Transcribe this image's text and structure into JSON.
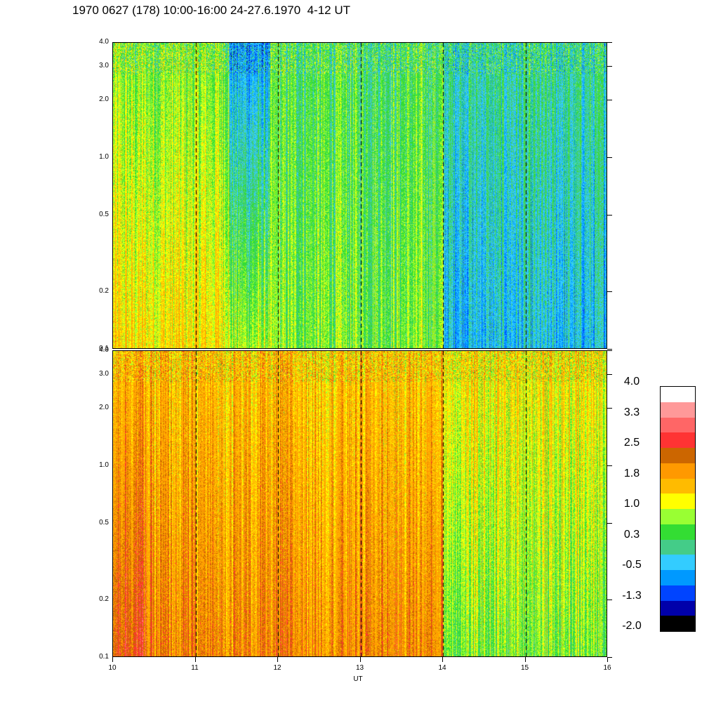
{
  "title": "1970 0627 (178) 10:00-16:00 24-27.6.1970  4-12 UT",
  "chart_data": [
    {
      "type": "heatmap",
      "name": "upper-panel",
      "x_range": [
        10,
        16
      ],
      "y_range": [
        0.1,
        4.0
      ],
      "y_scale": "log",
      "yticks": [
        "0.1",
        "0.2",
        "0.5",
        "1.0",
        "2.0",
        "3.0",
        "4.0"
      ],
      "vertical_markers": [
        11,
        12,
        13,
        14,
        15
      ],
      "dominant_levels": [
        {
          "x_from": 10,
          "x_to": 11.4,
          "low_y": 1.0,
          "high_y": 0.3
        },
        {
          "x_from": 11.4,
          "x_to": 11.9,
          "low_y": 0.5,
          "high_y": -1.0
        },
        {
          "x_from": 11.9,
          "x_to": 14.0,
          "low_y": 0.3,
          "high_y": 0.0
        },
        {
          "x_from": 14.0,
          "x_to": 16.0,
          "low_y": -0.8,
          "high_y": -0.3
        }
      ]
    },
    {
      "type": "heatmap",
      "name": "lower-panel",
      "x_range": [
        10,
        16
      ],
      "y_range": [
        0.1,
        4.0
      ],
      "y_scale": "log",
      "yticks": [
        "0.1",
        "0.2",
        "0.5",
        "1.0",
        "2.0",
        "3.0",
        "4.0"
      ],
      "xticks": [
        "10",
        "11",
        "12",
        "13",
        "14",
        "15",
        "16"
      ],
      "xlabel": "UT",
      "vertical_markers": [
        11,
        12,
        13,
        14,
        15
      ],
      "dominant_levels": [
        {
          "x_from": 10,
          "x_to": 10.4,
          "low_y": 2.2,
          "high_y": 1.4
        },
        {
          "x_from": 10.4,
          "x_to": 14.0,
          "low_y": 1.7,
          "high_y": 1.2
        },
        {
          "x_from": 14.0,
          "x_to": 16.0,
          "low_y": 0.3,
          "high_y": 1.0
        }
      ]
    }
  ],
  "colorbar": {
    "labels": [
      "4.0",
      "3.3",
      "2.5",
      "1.8",
      "1.0",
      "0.3",
      "-0.5",
      "-1.3",
      "-2.0"
    ],
    "colors": [
      "#ffffff",
      "#ff9999",
      "#ff6666",
      "#ff3333",
      "#cc6600",
      "#ff9900",
      "#ffbb00",
      "#ffff00",
      "#99ff33",
      "#33dd33",
      "#44cc88",
      "#33ccff",
      "#0099ff",
      "#0044ff",
      "#0000aa",
      "#000000"
    ]
  }
}
